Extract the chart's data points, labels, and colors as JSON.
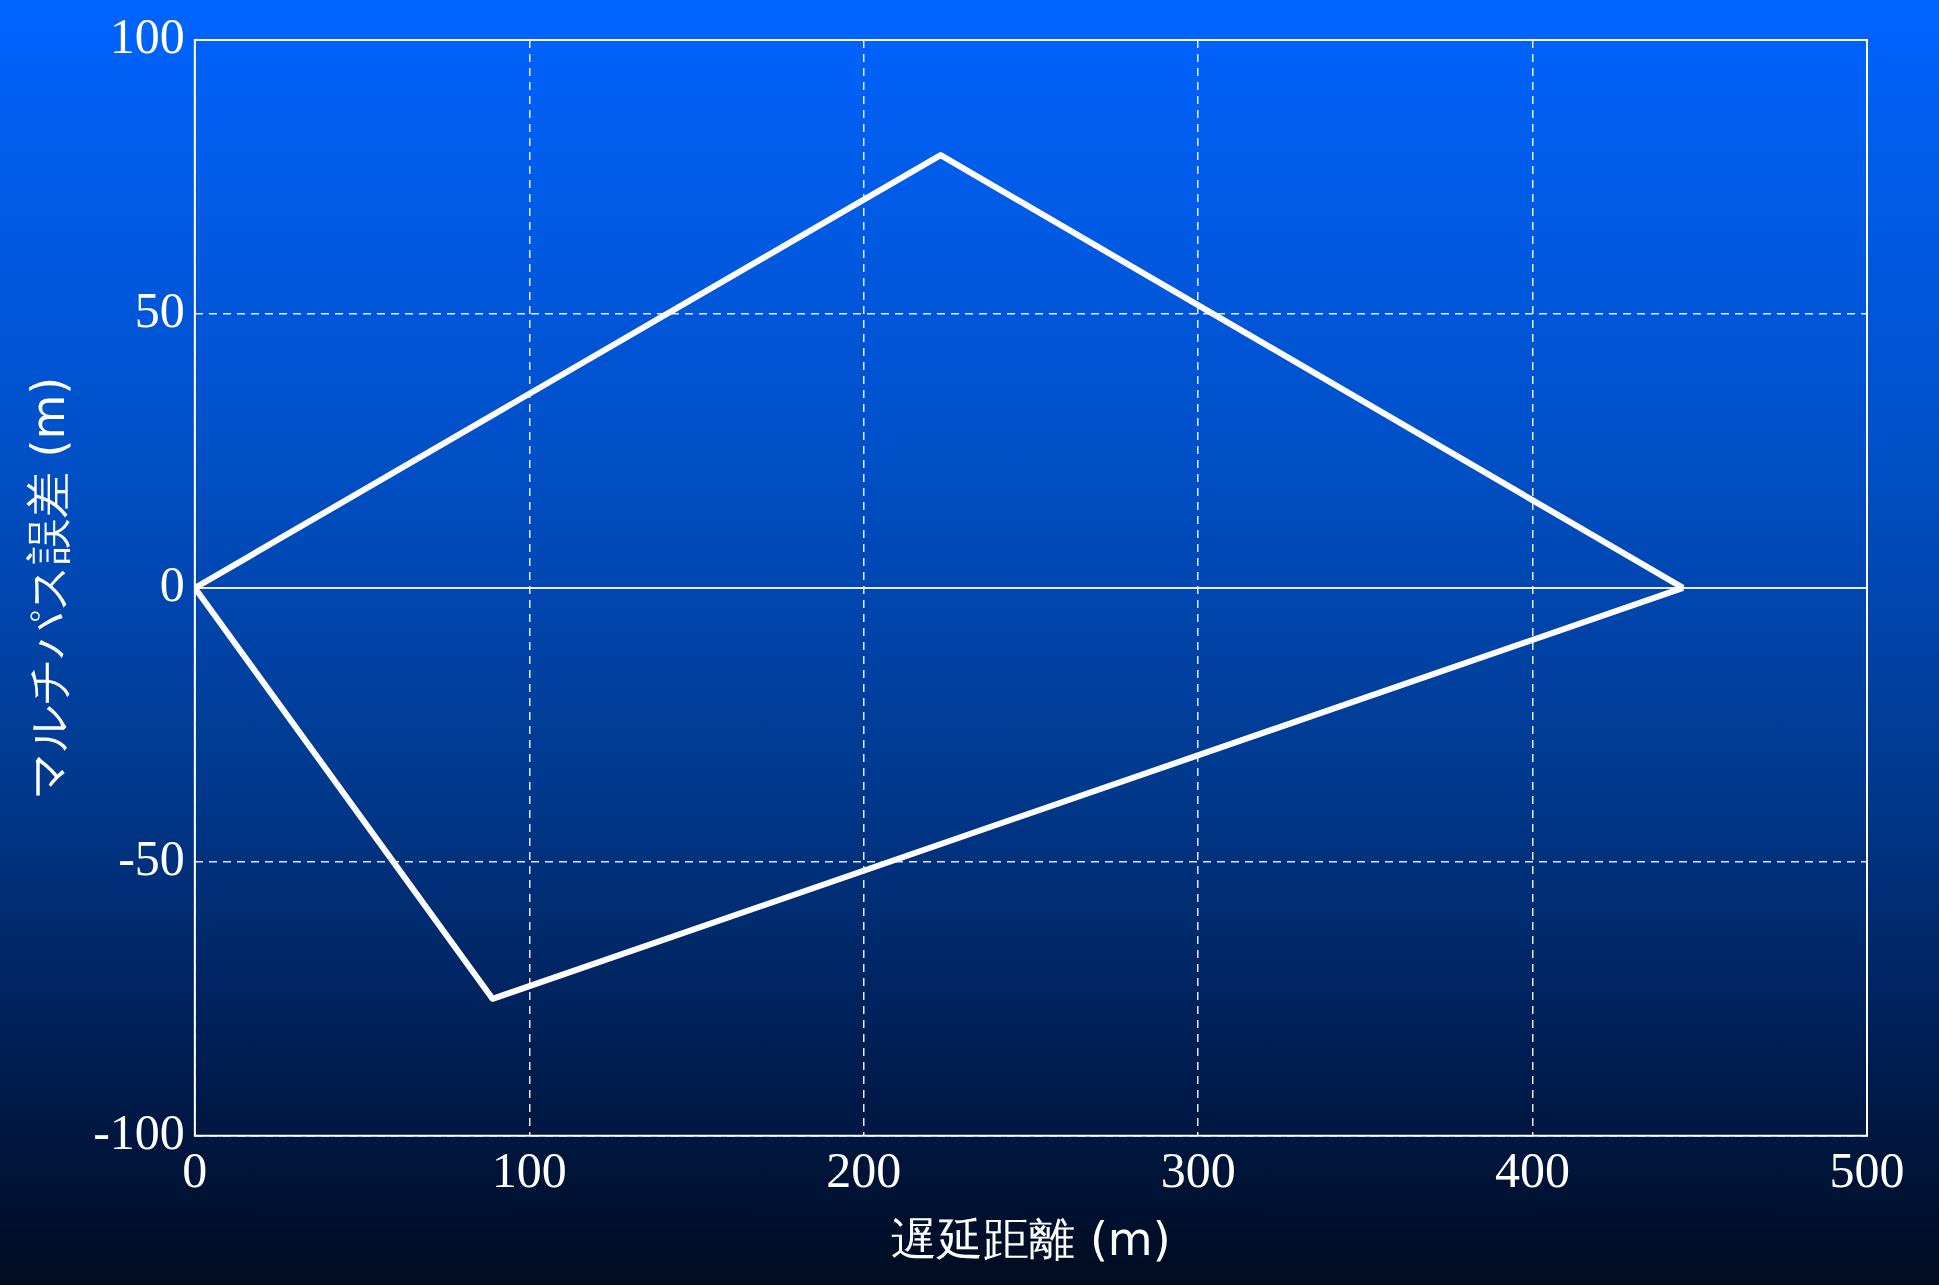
{
  "chart_data": {
    "type": "line",
    "xlabel": "遅延距離 (m)",
    "ylabel": "マルチパス誤差 (m)",
    "xlim": [
      0,
      500
    ],
    "xticks": [
      0,
      100,
      200,
      300,
      400,
      500
    ],
    "ylim": [
      -100,
      100
    ],
    "yticks": [
      -100,
      -50,
      0,
      50,
      100
    ],
    "grid": true,
    "marker": "none",
    "line_style": "solid",
    "series": [
      {
        "color": "#ffffff",
        "x": [
          0,
          223,
          445
        ],
        "values": [
          0,
          79,
          0
        ]
      },
      {
        "color": "#ffffff",
        "x": [
          0,
          89,
          445
        ],
        "values": [
          0,
          -75,
          0
        ]
      }
    ]
  }
}
